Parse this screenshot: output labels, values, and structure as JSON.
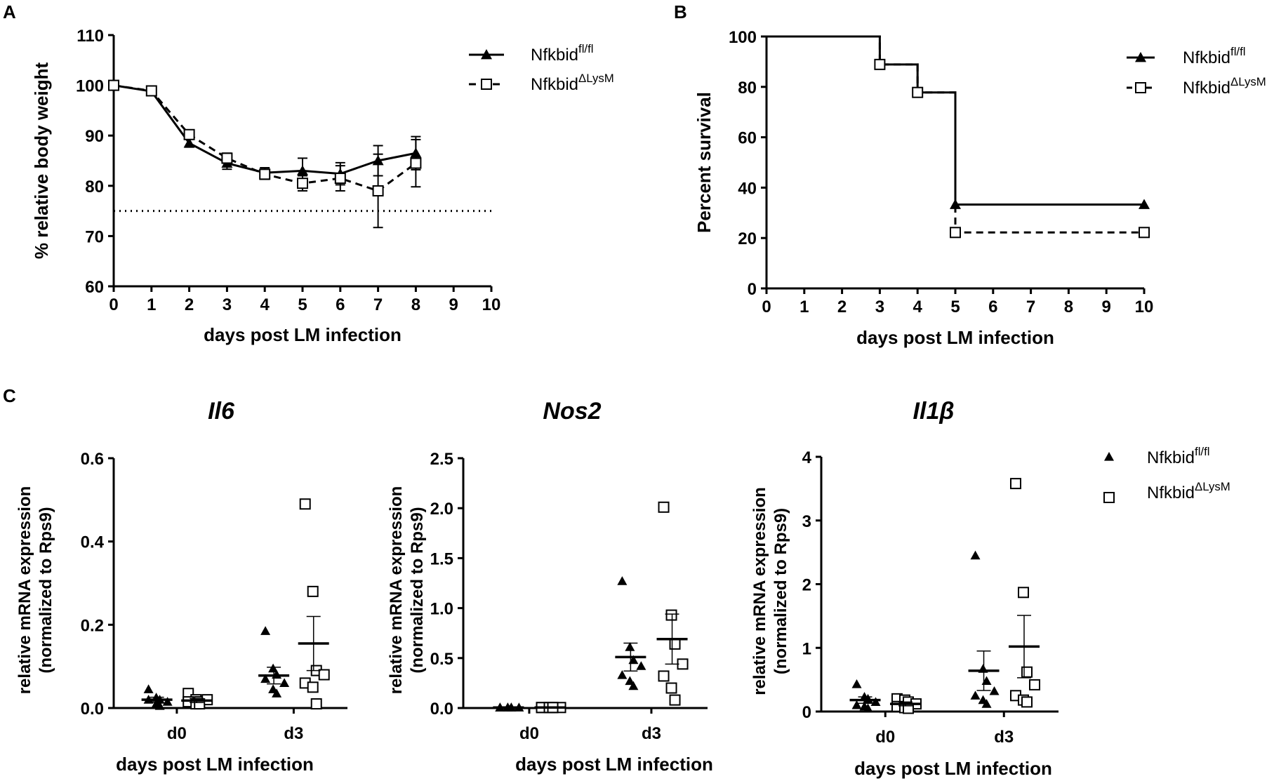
{
  "colors": {
    "ink": "#000000",
    "background": "#ffffff"
  },
  "legend": {
    "fl": {
      "base": "Nfkbid",
      "sup": "fl/fl",
      "marker": "filled-triangle"
    },
    "ko": {
      "base": "Nfkbid",
      "sup": "ΔLysM",
      "marker": "open-square"
    }
  },
  "chart_data": [
    {
      "panel": "A",
      "type": "line",
      "xlabel": "days post LM infection",
      "ylabel": "% relative body weight",
      "xlim": [
        0,
        10
      ],
      "ylim": [
        60,
        110
      ],
      "x_ticks": [
        "0",
        "1",
        "2",
        "3",
        "4",
        "5",
        "6",
        "7",
        "8",
        "9",
        "10"
      ],
      "y_ticks": [
        "60",
        "70",
        "80",
        "90",
        "100",
        "110"
      ],
      "threshold_line": 75,
      "x": [
        0,
        1,
        2,
        3,
        4,
        5,
        6,
        7,
        8
      ],
      "series": [
        {
          "name": "Nfkbid fl/fl",
          "marker": "triangle",
          "line": "solid",
          "values": [
            100,
            98.8,
            88.5,
            84.5,
            82.6,
            83.0,
            82.4,
            85.0,
            86.5
          ],
          "err": [
            0.6,
            0.6,
            0.8,
            1.2,
            1.0,
            2.5,
            2.2,
            3.0,
            3.3
          ]
        },
        {
          "name": "Nfkbid ΔLysM",
          "marker": "square",
          "line": "dashed",
          "values": [
            100,
            98.9,
            90.2,
            85.5,
            82.3,
            80.5,
            81.5,
            79.0,
            84.5
          ],
          "err": [
            0.6,
            0.6,
            0.8,
            1.0,
            1.0,
            1.5,
            2.5,
            7.3,
            4.7
          ]
        }
      ]
    },
    {
      "panel": "B",
      "type": "line",
      "subtype": "survival-step",
      "xlabel": "days post LM infection",
      "ylabel": "Percent survival",
      "xlim": [
        0,
        10
      ],
      "ylim": [
        0,
        100
      ],
      "x_ticks": [
        "0",
        "1",
        "2",
        "3",
        "4",
        "5",
        "6",
        "7",
        "8",
        "9",
        "10"
      ],
      "y_ticks": [
        "0",
        "20",
        "40",
        "60",
        "80",
        "100"
      ],
      "series": [
        {
          "name": "Nfkbid fl/fl",
          "marker": "triangle",
          "line": "solid",
          "steps": [
            [
              0,
              100
            ],
            [
              3,
              88.9
            ],
            [
              4,
              77.8
            ],
            [
              5,
              33.3
            ],
            [
              10,
              33.3
            ]
          ],
          "markers": [
            [
              3,
              88.9
            ],
            [
              4,
              77.8
            ],
            [
              5,
              33.3
            ],
            [
              10,
              33.3
            ]
          ]
        },
        {
          "name": "Nfkbid ΔLysM",
          "marker": "square",
          "line": "dashed",
          "steps": [
            [
              0,
              100
            ],
            [
              3,
              88.9
            ],
            [
              4,
              77.8
            ],
            [
              5,
              22.2
            ],
            [
              10,
              22.2
            ]
          ],
          "markers": [
            [
              3,
              88.9
            ],
            [
              4,
              77.8
            ],
            [
              5,
              22.2
            ],
            [
              10,
              22.2
            ]
          ]
        }
      ]
    },
    {
      "panel": "C",
      "type": "scatter",
      "title": "Il6",
      "xlabel": "days post LM infection",
      "ylabel": [
        "relative mRNA expression",
        "(normalized to Rps9)"
      ],
      "categories": [
        "d0",
        "d3"
      ],
      "ylim": [
        0,
        0.6
      ],
      "y_ticks": [
        0,
        0.2,
        0.4,
        0.6
      ],
      "y_tick_labels": [
        "0.0",
        "0.2",
        "0.4",
        "0.6"
      ],
      "groups": [
        {
          "cat": 0,
          "series": "fl",
          "points": [
            0.045,
            0.025,
            0.02,
            0.015,
            0.02,
            0.01,
            0.005
          ],
          "mean": 0.02,
          "sem": 0.006
        },
        {
          "cat": 0,
          "series": "ko",
          "points": [
            0.035,
            0.02,
            0.015,
            0.02,
            0.015,
            0.01,
            0.01
          ],
          "mean": 0.018,
          "sem": 0.005
        },
        {
          "cat": 1,
          "series": "fl",
          "points": [
            0.185,
            0.095,
            0.08,
            0.06,
            0.07,
            0.045,
            0.035
          ],
          "mean": 0.078,
          "sem": 0.02
        },
        {
          "cat": 1,
          "series": "ko",
          "points": [
            0.49,
            0.28,
            0.09,
            0.08,
            0.06,
            0.05,
            0.01
          ],
          "mean": 0.155,
          "sem": 0.065
        }
      ]
    },
    {
      "panel": "C",
      "type": "scatter",
      "title": "Nos2",
      "xlabel": "days post LM infection",
      "ylabel": [
        "relative mRNA expression",
        "(normalized to Rps9)"
      ],
      "categories": [
        "d0",
        "d3"
      ],
      "ylim": [
        0,
        2.5
      ],
      "y_ticks": [
        0,
        0.5,
        1.0,
        1.5,
        2.0,
        2.5
      ],
      "y_tick_labels": [
        "0.0",
        "0.5",
        "1.0",
        "1.5",
        "2.0",
        "2.5"
      ],
      "groups": [
        {
          "cat": 0,
          "series": "fl",
          "points": [
            0.005,
            0.005,
            0.005,
            0.005,
            0.005,
            0.005,
            0.005
          ],
          "mean": 0.005,
          "sem": 0.002
        },
        {
          "cat": 0,
          "series": "ko",
          "points": [
            0.005,
            0.005,
            0.005,
            0.005,
            0.005,
            0.005,
            0.005
          ],
          "mean": 0.005,
          "sem": 0.002
        },
        {
          "cat": 1,
          "series": "fl",
          "points": [
            1.27,
            0.61,
            0.48,
            0.42,
            0.33,
            0.27,
            0.22
          ],
          "mean": 0.51,
          "sem": 0.14
        },
        {
          "cat": 1,
          "series": "ko",
          "points": [
            2.01,
            0.93,
            0.64,
            0.44,
            0.32,
            0.2,
            0.08
          ],
          "mean": 0.69,
          "sem": 0.25
        }
      ]
    },
    {
      "panel": "C",
      "type": "scatter",
      "title": "Il1β",
      "xlabel": "days post LM infection",
      "ylabel": [
        "relative mRNA expression",
        "(normalized to Rps9)"
      ],
      "categories": [
        "d0",
        "d3"
      ],
      "ylim": [
        0,
        4
      ],
      "y_ticks": [
        0,
        1,
        2,
        3,
        4
      ],
      "y_tick_labels": [
        "0",
        "1",
        "2",
        "3",
        "4"
      ],
      "groups": [
        {
          "cat": 0,
          "series": "fl",
          "points": [
            0.43,
            0.23,
            0.2,
            0.15,
            0.1,
            0.08,
            0.05
          ],
          "mean": 0.18,
          "sem": 0.05
        },
        {
          "cat": 0,
          "series": "ko",
          "points": [
            0.2,
            0.18,
            0.15,
            0.12,
            0.08,
            0.06,
            0.05
          ],
          "mean": 0.12,
          "sem": 0.03
        },
        {
          "cat": 1,
          "series": "fl",
          "points": [
            2.45,
            0.67,
            0.48,
            0.32,
            0.25,
            0.18,
            0.12
          ],
          "mean": 0.64,
          "sem": 0.31
        },
        {
          "cat": 1,
          "series": "ko",
          "points": [
            3.58,
            1.87,
            0.62,
            0.42,
            0.25,
            0.18,
            0.15
          ],
          "mean": 1.02,
          "sem": 0.49
        }
      ]
    }
  ],
  "panel_labels": [
    "A",
    "B",
    "C"
  ]
}
